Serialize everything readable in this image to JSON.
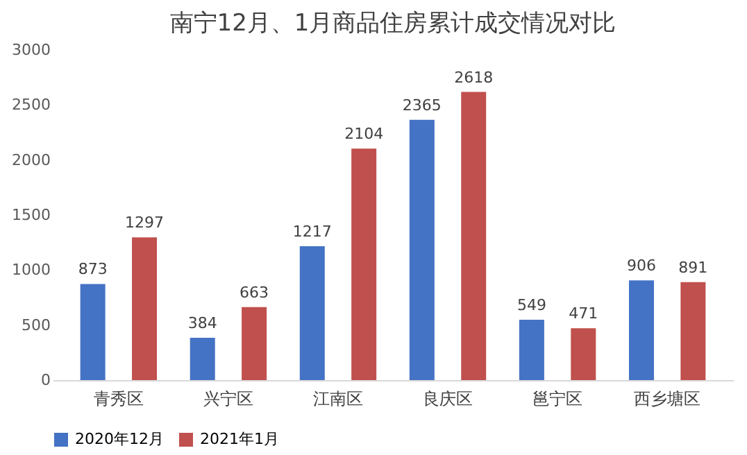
{
  "chart_data": {
    "type": "bar",
    "title": "南宁12月、1月商品住房累计成交情况对比",
    "categories": [
      "青秀区",
      "兴宁区",
      "江南区",
      "良庆区",
      "邕宁区",
      "西乡塘区"
    ],
    "series": [
      {
        "name": "2020年12月",
        "color": "#4472c4",
        "values": [
          873,
          384,
          1217,
          2365,
          549,
          906
        ]
      },
      {
        "name": "2021年1月",
        "color": "#c0504d",
        "values": [
          1297,
          663,
          2104,
          2618,
          471,
          891
        ]
      }
    ],
    "ylim": [
      0,
      3000
    ],
    "yticks": [
      0,
      500,
      1000,
      1500,
      2000,
      2500,
      3000
    ],
    "grid": false,
    "legend": "bottom",
    "data_labels": true
  }
}
